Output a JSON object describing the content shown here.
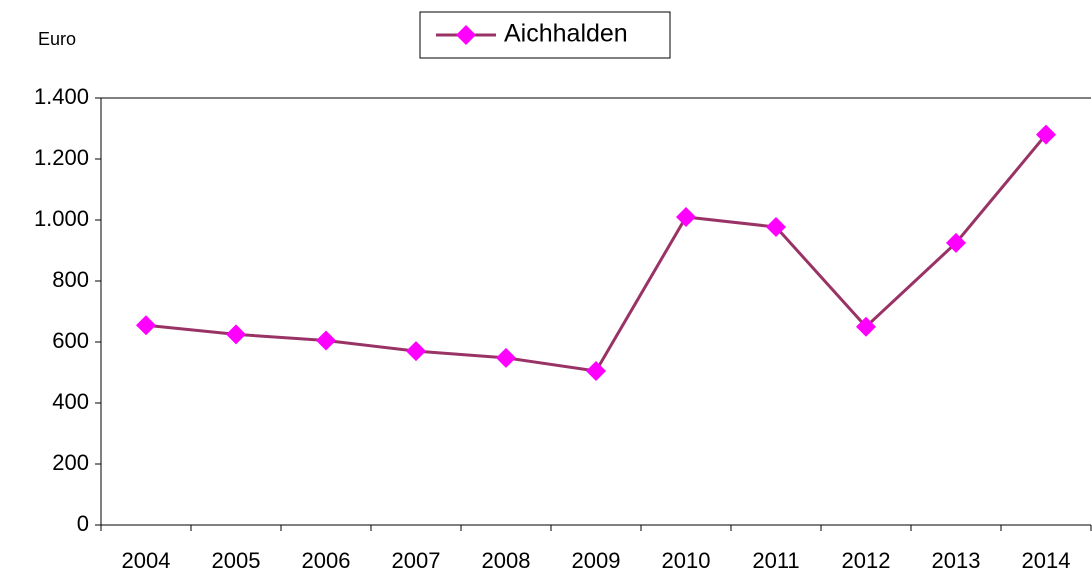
{
  "chart_data": {
    "type": "line",
    "y_label": "Euro",
    "categories": [
      "2004",
      "2005",
      "2006",
      "2007",
      "2008",
      "2009",
      "2010",
      "2011",
      "2012",
      "2013",
      "2014"
    ],
    "series": [
      {
        "name": "Aichhalden",
        "color": "#993366",
        "marker_color": "#ff00ff",
        "values": [
          655,
          625,
          605,
          570,
          548,
          505,
          1010,
          977,
          650,
          925,
          1280
        ]
      }
    ],
    "ylim": [
      0,
      1400
    ],
    "yticks": [
      0,
      200,
      400,
      600,
      800,
      {
        "value": 1000,
        "label": "1.000"
      },
      {
        "value": 1200,
        "label": "1.200"
      },
      {
        "value": 1400,
        "label": "1.400"
      }
    ],
    "legend": "top"
  }
}
